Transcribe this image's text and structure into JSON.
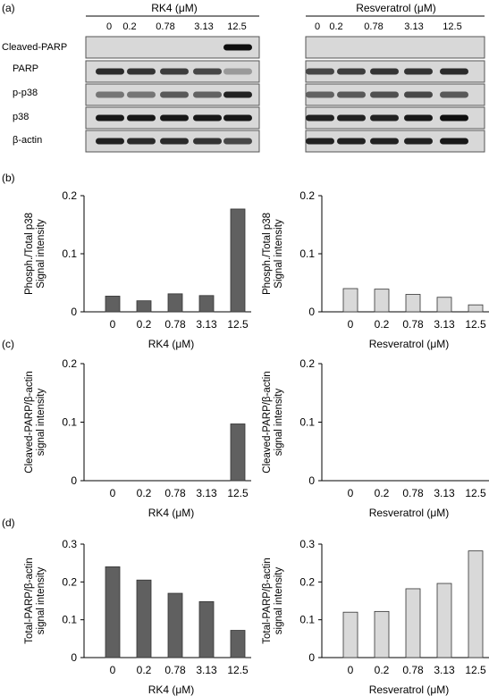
{
  "panel_labels": {
    "a": "(a)",
    "b": "(b)",
    "c": "(c)",
    "d": "(d)"
  },
  "blot": {
    "rk4_header": "RK4 (μM)",
    "res_header": "Resveratrol (μM)",
    "concentrations": [
      "0",
      "0.2",
      "0.78",
      "3.13",
      "12.5"
    ],
    "rows": [
      "Cleaved-PARP",
      "PARP",
      "p-p38",
      "p38",
      "β-actin"
    ],
    "band_intensity": {
      "rk4": [
        [
          0,
          0,
          0,
          0,
          1.0
        ],
        [
          0.85,
          0.8,
          0.75,
          0.7,
          0.25
        ],
        [
          0.45,
          0.45,
          0.6,
          0.55,
          0.9
        ],
        [
          0.95,
          0.95,
          0.95,
          0.95,
          0.95
        ],
        [
          0.9,
          0.85,
          0.85,
          0.8,
          0.7
        ]
      ],
      "res": [
        [
          0,
          0,
          0,
          0,
          0
        ],
        [
          0.7,
          0.75,
          0.8,
          0.8,
          0.85
        ],
        [
          0.55,
          0.6,
          0.65,
          0.7,
          0.6
        ],
        [
          0.9,
          0.9,
          0.9,
          0.95,
          1.0
        ],
        [
          0.9,
          0.9,
          0.9,
          0.9,
          0.95
        ]
      ]
    }
  },
  "colors": {
    "rk4_bar": "#606060",
    "res_bar": "#d9d9d9",
    "bar_edge": "#333333"
  },
  "chart_data": [
    {
      "id": "b_left",
      "type": "bar",
      "categories": [
        "0",
        "0.2",
        "0.78",
        "3.13",
        "12.5"
      ],
      "values": [
        0.027,
        0.019,
        0.031,
        0.028,
        0.177
      ],
      "xlabel": "RK4 (μM)",
      "ylabel": [
        "Phosph./Total p38",
        "Signal intensity"
      ],
      "yticks": [
        "0",
        "0.1",
        "0.2"
      ],
      "ylim": [
        0,
        0.2
      ]
    },
    {
      "id": "b_right",
      "type": "bar",
      "categories": [
        "0",
        "0.2",
        "0.78",
        "3.13",
        "12.5"
      ],
      "values": [
        0.04,
        0.039,
        0.03,
        0.025,
        0.012
      ],
      "xlabel": "Resveratrol (μM)",
      "ylabel": [
        "Phosph./Total p38",
        "Signal intensity"
      ],
      "yticks": [
        "0",
        "0.1",
        "0.2"
      ],
      "ylim": [
        0,
        0.2
      ]
    },
    {
      "id": "c_left",
      "type": "bar",
      "categories": [
        "0",
        "0.2",
        "0.78",
        "3.13",
        "12.5"
      ],
      "values": [
        0,
        0,
        0,
        0,
        0.097
      ],
      "xlabel": "RK4 (μM)",
      "ylabel": [
        "Cleaved-PARP/β-actin",
        "signal intensity"
      ],
      "yticks": [
        "0",
        "0.1",
        "0.2"
      ],
      "ylim": [
        0,
        0.2
      ]
    },
    {
      "id": "c_right",
      "type": "bar",
      "categories": [
        "0",
        "0.2",
        "0.78",
        "3.13",
        "12.5"
      ],
      "values": [
        0,
        0,
        0,
        0,
        0
      ],
      "xlabel": "Resveratrol (μM)",
      "ylabel": [
        "Cleaved-PARP/β-actin",
        "signal intensity"
      ],
      "yticks": [
        "0",
        "0.1",
        "0.2"
      ],
      "ylim": [
        0,
        0.2
      ]
    },
    {
      "id": "d_left",
      "type": "bar",
      "categories": [
        "0",
        "0.2",
        "0.78",
        "3.13",
        "12.5"
      ],
      "values": [
        0.24,
        0.205,
        0.17,
        0.148,
        0.072
      ],
      "xlabel": "RK4 (μM)",
      "ylabel": [
        "Total-PARP/β-actin",
        "signal intensity"
      ],
      "yticks": [
        "0",
        "0.1",
        "0.2",
        "0.3"
      ],
      "ylim": [
        0,
        0.3
      ]
    },
    {
      "id": "d_right",
      "type": "bar",
      "categories": [
        "0",
        "0.2",
        "0.78",
        "3.13",
        "12.5"
      ],
      "values": [
        0.12,
        0.122,
        0.182,
        0.196,
        0.282
      ],
      "xlabel": "Resveratrol (μM)",
      "ylabel": [
        "Total-PARP/β-actin",
        "signal intensity"
      ],
      "yticks": [
        "0",
        "0.1",
        "0.2",
        "0.3"
      ],
      "ylim": [
        0,
        0.3
      ]
    }
  ]
}
